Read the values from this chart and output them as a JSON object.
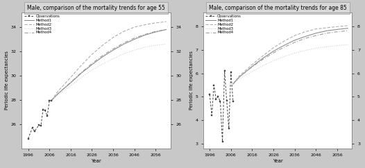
{
  "left_title": "Male, comparison of the mortality trends for age 55",
  "right_title": "Male, comparison of the mortality trends for age 85",
  "ylabel": "Periodic life expectancies",
  "xlabel": "Year",
  "fig_bg": "#c8c8c8",
  "panel_bg": "#ffffff",
  "title_bg": "#d8d8d8",
  "left": {
    "obs_years": [
      1996,
      1998,
      1999,
      2001,
      2002,
      2003,
      2004,
      2005,
      2006,
      2007
    ],
    "obs_values": [
      24.8,
      25.7,
      25.4,
      25.9,
      25.85,
      27.2,
      27.15,
      26.65,
      27.95,
      27.95
    ],
    "proj_start_year": 2007,
    "proj_years": [
      2007,
      2010,
      2016,
      2021,
      2026,
      2031,
      2036,
      2041,
      2046,
      2051,
      2056,
      2061
    ],
    "method1": [
      27.95,
      28.5,
      29.4,
      30.2,
      30.9,
      31.55,
      32.1,
      32.6,
      33.0,
      33.35,
      33.6,
      33.8
    ],
    "method2": [
      27.95,
      28.7,
      29.85,
      30.85,
      31.75,
      32.5,
      33.15,
      33.65,
      34.0,
      34.2,
      34.35,
      34.45
    ],
    "method3": [
      27.95,
      28.4,
      29.15,
      29.85,
      30.45,
      30.95,
      31.4,
      31.8,
      32.1,
      32.35,
      32.5,
      32.6
    ],
    "method4": [
      27.95,
      28.5,
      29.45,
      30.25,
      31.0,
      31.65,
      32.2,
      32.7,
      33.1,
      33.4,
      33.65,
      33.8
    ],
    "ylim": [
      24.0,
      35.2
    ],
    "yticks": [
      26,
      28,
      30,
      32,
      34
    ]
  },
  "right": {
    "obs_years": [
      1996,
      1997,
      1998,
      1999,
      2000,
      2001,
      2002,
      2003,
      2004,
      2005,
      2006,
      2007
    ],
    "obs_values": [
      5.1,
      4.2,
      5.5,
      4.9,
      5.0,
      4.8,
      3.1,
      6.1,
      4.85,
      3.65,
      6.05,
      4.8
    ],
    "proj_start_year": 2007,
    "proj_years": [
      2007,
      2010,
      2016,
      2021,
      2026,
      2031,
      2036,
      2041,
      2046,
      2051,
      2056,
      2061
    ],
    "method1": [
      5.55,
      5.85,
      6.3,
      6.65,
      6.95,
      7.2,
      7.42,
      7.58,
      7.72,
      7.82,
      7.88,
      7.93
    ],
    "method2": [
      5.55,
      5.9,
      6.38,
      6.75,
      7.1,
      7.38,
      7.62,
      7.78,
      7.9,
      7.95,
      8.0,
      8.04
    ],
    "method3": [
      5.55,
      5.78,
      6.08,
      6.33,
      6.54,
      6.72,
      6.87,
      6.98,
      7.08,
      7.14,
      7.19,
      7.23
    ],
    "method4": [
      5.55,
      5.85,
      6.28,
      6.6,
      6.88,
      7.12,
      7.33,
      7.5,
      7.62,
      7.72,
      7.78,
      7.83
    ],
    "ylim": [
      2.8,
      8.6
    ],
    "yticks": [
      3,
      4,
      5,
      6,
      7,
      8
    ]
  },
  "line_color_m1": "#888888",
  "line_color_m2": "#aaaaaa",
  "line_color_m3": "#cccccc",
  "line_color_m4": "#999999",
  "obs_color": "#444444",
  "legend_labels": [
    "Observations",
    "Method1",
    "Method2",
    "Method3",
    "Method4"
  ],
  "xticks": [
    1996,
    2006,
    2016,
    2026,
    2036,
    2046,
    2056
  ]
}
